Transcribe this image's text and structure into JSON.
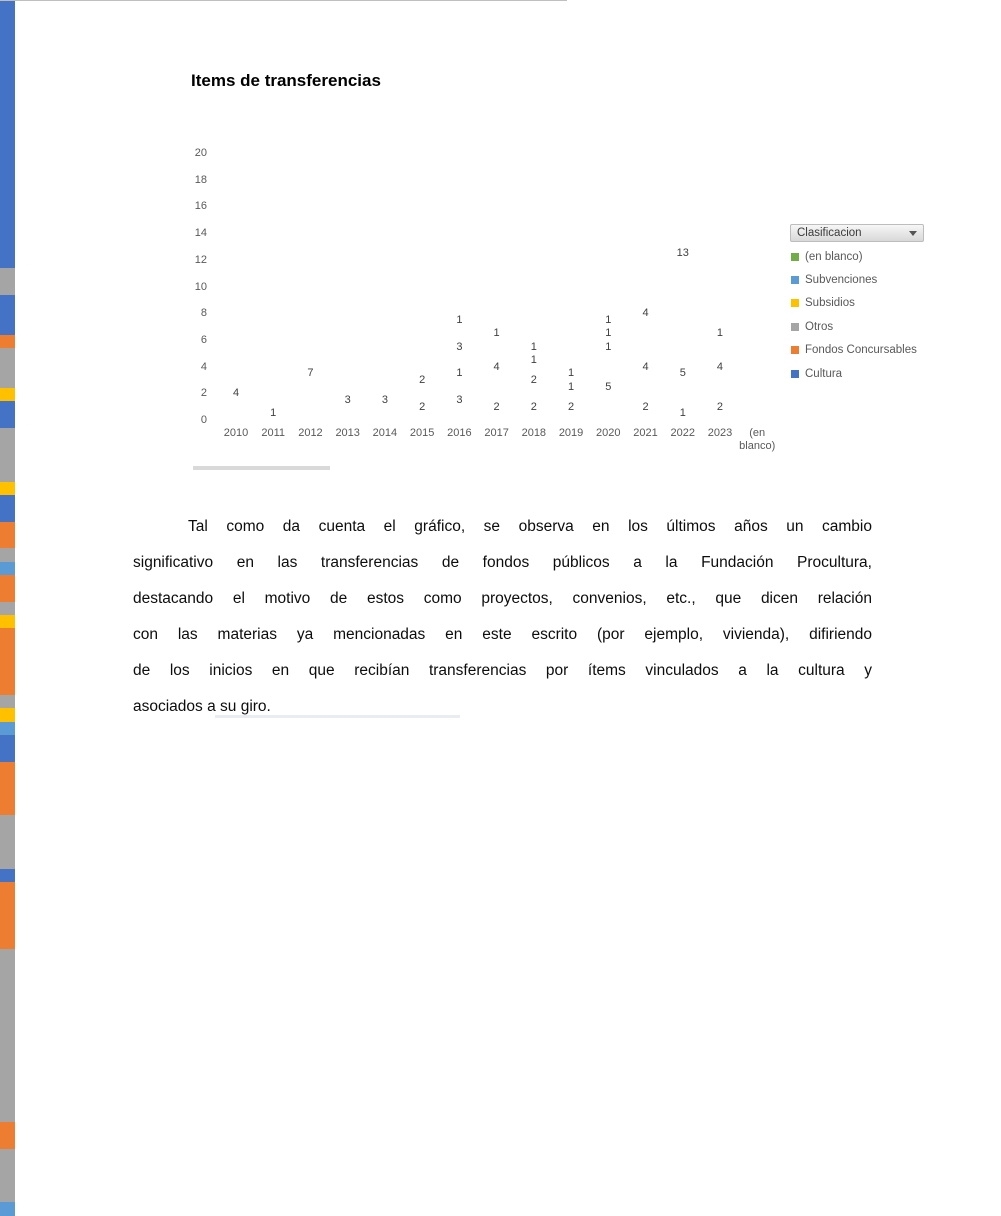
{
  "chart": {
    "filter_button_label": "Clasificacion"
  },
  "chart_data": {
    "type": "bar",
    "stacked": true,
    "title": "Items de transferencias",
    "xlabel": "",
    "ylabel": "",
    "categories": [
      "2010",
      "2011",
      "2012",
      "2013",
      "2014",
      "2015",
      "2016",
      "2017",
      "2018",
      "2019",
      "2020",
      "2021",
      "2022",
      "2023",
      "(en blanco)"
    ],
    "series": [
      {
        "name": "Cultura",
        "color": "#4472C4",
        "values": [
          4,
          1,
          7,
          3,
          3,
          2,
          3,
          2,
          2,
          0,
          0,
          2,
          1,
          0,
          0
        ]
      },
      {
        "name": "Fondos Concursables",
        "color": "#ED7D31",
        "values": [
          0,
          0,
          0,
          0,
          0,
          0,
          1,
          0,
          2,
          2,
          5,
          4,
          5,
          2,
          0
        ]
      },
      {
        "name": "Otros",
        "color": "#A5A5A5",
        "values": [
          0,
          0,
          0,
          0,
          0,
          2,
          3,
          4,
          1,
          1,
          1,
          4,
          13,
          4,
          0
        ]
      },
      {
        "name": "Subsidios",
        "color": "#FFC000",
        "values": [
          0,
          0,
          0,
          0,
          0,
          0,
          1,
          1,
          0,
          1,
          1,
          0,
          0,
          0,
          0
        ]
      },
      {
        "name": "Subvenciones",
        "color": "#5B9BD5",
        "values": [
          0,
          0,
          0,
          0,
          0,
          0,
          0,
          0,
          1,
          0,
          1,
          0,
          0,
          1,
          0
        ]
      },
      {
        "name": "(en blanco)",
        "color": "#70AD47",
        "values": [
          0,
          0,
          0,
          0,
          0,
          0,
          0,
          0,
          0,
          0,
          0,
          0,
          0,
          0,
          0
        ]
      }
    ],
    "stack_order": "bottom-to-top",
    "totals": [
      4,
      1,
      7,
      3,
      3,
      4,
      8,
      7,
      6,
      4,
      8,
      10,
      19,
      7,
      0
    ],
    "ylim": [
      0,
      20
    ],
    "yticks": [
      0,
      2,
      4,
      6,
      8,
      10,
      12,
      14,
      16,
      18,
      20
    ],
    "grid": false,
    "data_labels": true,
    "legend_position": "right",
    "legend_order_top_to_bottom": [
      "(en blanco)",
      "Subvenciones",
      "Subsidios",
      "Otros",
      "Fondos Concursables",
      "Cultura"
    ]
  },
  "document": {
    "paragraph_lines": [
      "Tal como da cuenta el gráfico, se observa en los últimos años un cambio",
      "significativo en las transferencias de fondos públicos a la Fundación Procultura,",
      "destacando el motivo de estos como proyectos, convenios, etc., que dicen relación",
      "con las materias ya mencionadas en este escrito (por ejemplo, vivienda), difiriendo",
      "de los inicios en que recibían transferencias por ítems vinculados a la cultura y",
      "asociados a su giro."
    ]
  }
}
